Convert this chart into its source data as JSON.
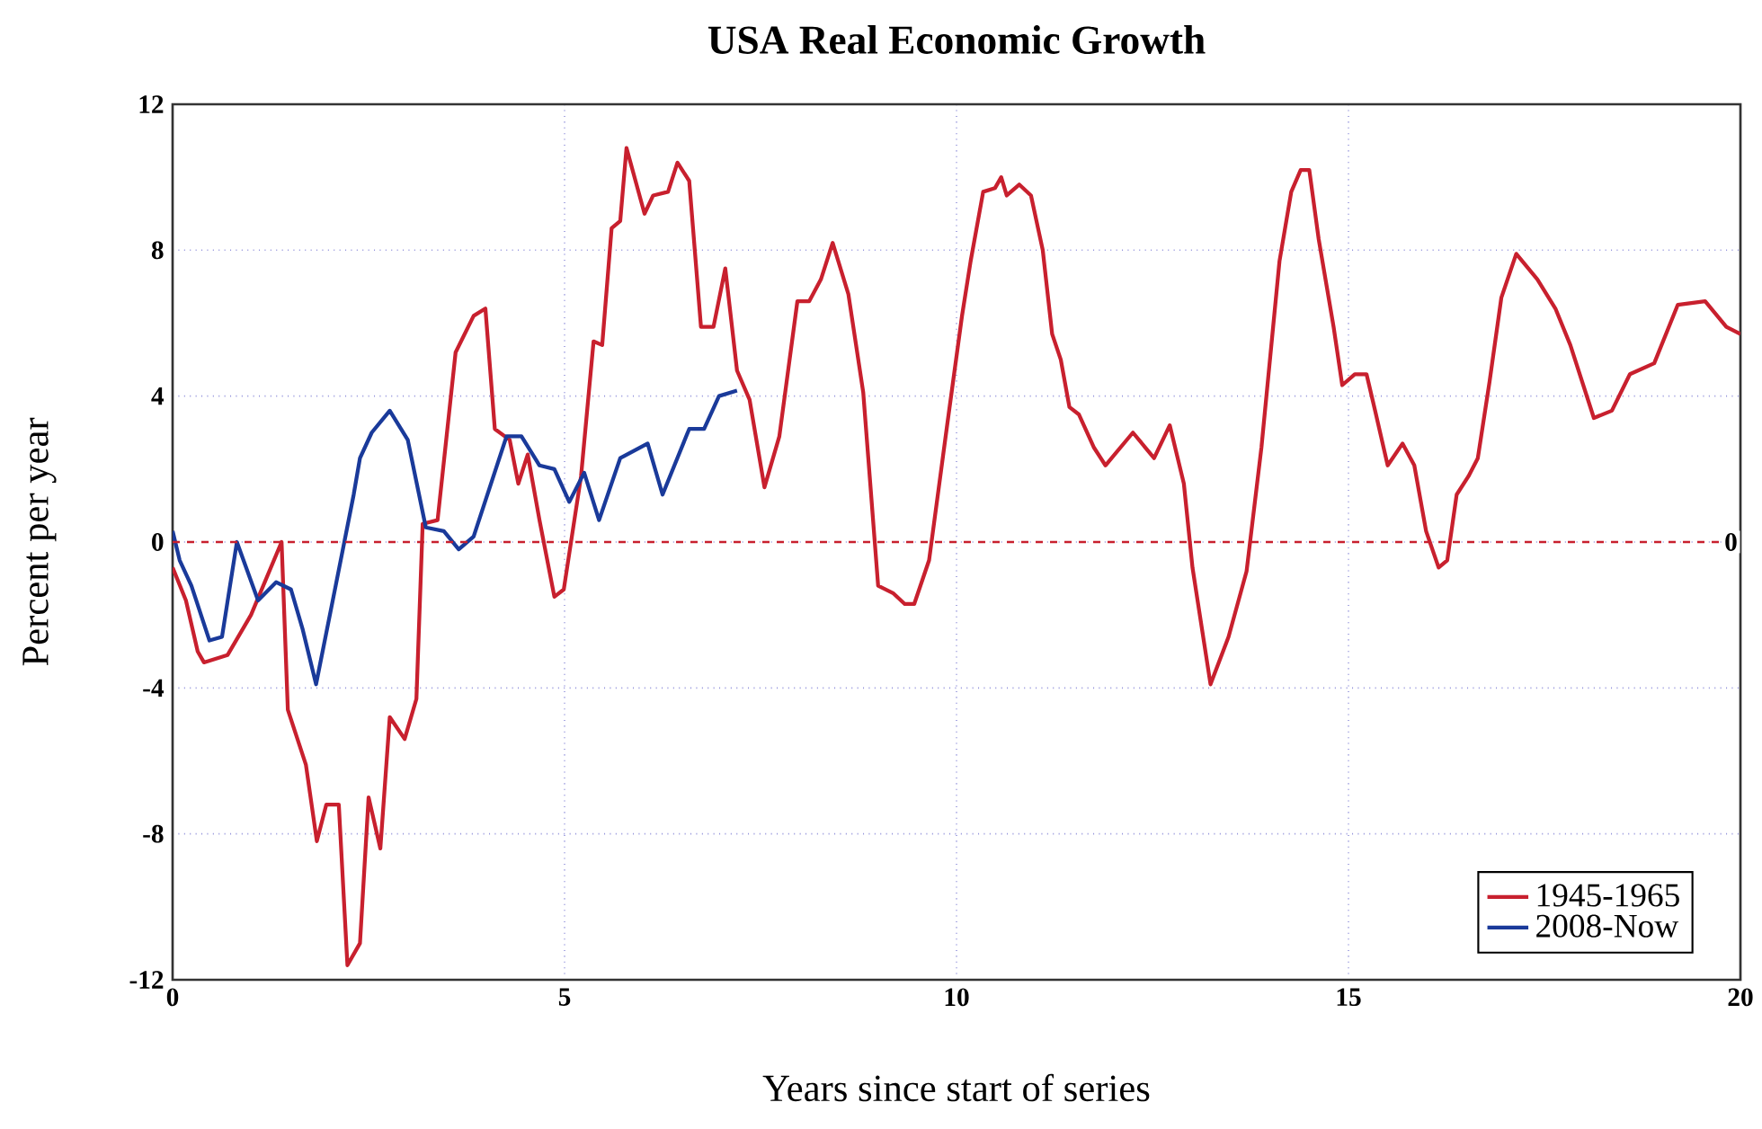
{
  "chart_data": {
    "type": "line",
    "title": "USA Real Economic Growth",
    "xlabel": "Years since start of series",
    "ylabel": "Percent per year",
    "xlim": [
      0,
      20
    ],
    "xticks": [
      0,
      5,
      10,
      15,
      20
    ],
    "ylim": [
      -12,
      12
    ],
    "yticks": [
      -12,
      -8,
      -4,
      0,
      4,
      8,
      12
    ],
    "grid": true,
    "legend": "bottom right",
    "line_style": "solid",
    "ref_lines": [
      {
        "axis": "y",
        "value": 0,
        "label": "0",
        "color": "#c8202e",
        "line_style": "dashed"
      }
    ],
    "series": [
      {
        "name": "1945-1965",
        "color": "#c8202e",
        "x": [
          0,
          0.17,
          0.32,
          0.4,
          0.7,
          1.0,
          1.39,
          1.47,
          1.7,
          1.84,
          1.96,
          2.12,
          2.23,
          2.39,
          2.5,
          2.65,
          2.77,
          2.96,
          3.11,
          3.19,
          3.38,
          3.61,
          3.84,
          3.99,
          4.11,
          4.3,
          4.41,
          4.53,
          4.68,
          4.87,
          4.99,
          5.21,
          5.37,
          5.48,
          5.6,
          5.71,
          5.79,
          6.02,
          6.13,
          6.32,
          6.44,
          6.59,
          6.74,
          6.9,
          7.05,
          7.2,
          7.36,
          7.55,
          7.74,
          7.97,
          8.12,
          8.27,
          8.42,
          8.62,
          8.81,
          9.0,
          9.19,
          9.34,
          9.46,
          9.65,
          9.88,
          10.07,
          10.18,
          10.34,
          10.49,
          10.57,
          10.64,
          10.8,
          10.95,
          11.1,
          11.22,
          11.33,
          11.44,
          11.56,
          11.75,
          11.9,
          12.25,
          12.52,
          12.72,
          12.9,
          13.01,
          13.24,
          13.47,
          13.7,
          13.89,
          14.12,
          14.27,
          14.39,
          14.5,
          14.62,
          14.81,
          14.92,
          15.08,
          15.23,
          15.34,
          15.5,
          15.69,
          15.84,
          15.99,
          16.15,
          16.26,
          16.38,
          16.53,
          16.65,
          16.8,
          16.95,
          17.14,
          17.41,
          17.64,
          17.83,
          18.13,
          18.36,
          18.59,
          18.9,
          19.2,
          19.55,
          19.82,
          20.0
        ],
        "values": [
          -0.7,
          -1.6,
          -3.0,
          -3.3,
          -3.1,
          -2.0,
          0,
          -4.6,
          -6.1,
          -8.2,
          -7.2,
          -7.2,
          -11.6,
          -11.0,
          -7.0,
          -8.4,
          -4.8,
          -5.4,
          -4.3,
          0.5,
          0.6,
          5.2,
          6.2,
          6.4,
          3.1,
          2.8,
          1.6,
          2.4,
          0.6,
          -1.5,
          -1.3,
          1.8,
          5.5,
          5.4,
          8.6,
          8.8,
          10.8,
          9.0,
          9.5,
          9.6,
          10.4,
          9.9,
          5.9,
          5.9,
          7.5,
          4.7,
          3.9,
          1.5,
          2.9,
          6.6,
          6.6,
          7.2,
          8.2,
          6.8,
          4.1,
          -1.2,
          -1.4,
          -1.7,
          -1.7,
          -0.5,
          3.2,
          6.2,
          7.7,
          9.6,
          9.7,
          10.0,
          9.5,
          9.8,
          9.5,
          8.0,
          5.7,
          5.0,
          3.7,
          3.5,
          2.6,
          2.1,
          3.0,
          2.3,
          3.2,
          1.6,
          -0.7,
          -3.9,
          -2.6,
          -0.8,
          2.6,
          7.7,
          9.6,
          10.2,
          10.2,
          8.3,
          5.9,
          4.3,
          4.6,
          4.6,
          3.6,
          2.1,
          2.7,
          2.1,
          0.3,
          -0.7,
          -0.5,
          1.3,
          1.8,
          2.3,
          4.4,
          6.7,
          7.9,
          7.2,
          6.4,
          5.4,
          3.4,
          3.6,
          4.6,
          4.9,
          6.5,
          6.6,
          5.9,
          5.7
        ]
      },
      {
        "name": "2008-Now",
        "color": "#1a3a9a",
        "x": [
          0,
          0.09,
          0.24,
          0.47,
          0.63,
          0.82,
          1.09,
          1.32,
          1.51,
          1.66,
          1.83,
          2.08,
          2.31,
          2.39,
          2.54,
          2.77,
          3.0,
          3.23,
          3.46,
          3.65,
          3.84,
          4.26,
          4.45,
          4.68,
          4.87,
          5.06,
          5.25,
          5.44,
          5.71,
          6.06,
          6.25,
          6.59,
          6.78,
          6.97,
          7.2
        ],
        "values": [
          0.3,
          -0.5,
          -1.2,
          -2.7,
          -2.6,
          0,
          -1.6,
          -1.1,
          -1.3,
          -2.4,
          -3.9,
          -1.2,
          1.3,
          2.3,
          3.0,
          3.6,
          2.8,
          0.4,
          0.3,
          -0.2,
          0.15,
          2.9,
          2.9,
          2.1,
          2.0,
          1.1,
          1.9,
          0.6,
          2.3,
          2.7,
          1.3,
          3.1,
          3.1,
          4.0,
          4.15
        ]
      }
    ]
  }
}
